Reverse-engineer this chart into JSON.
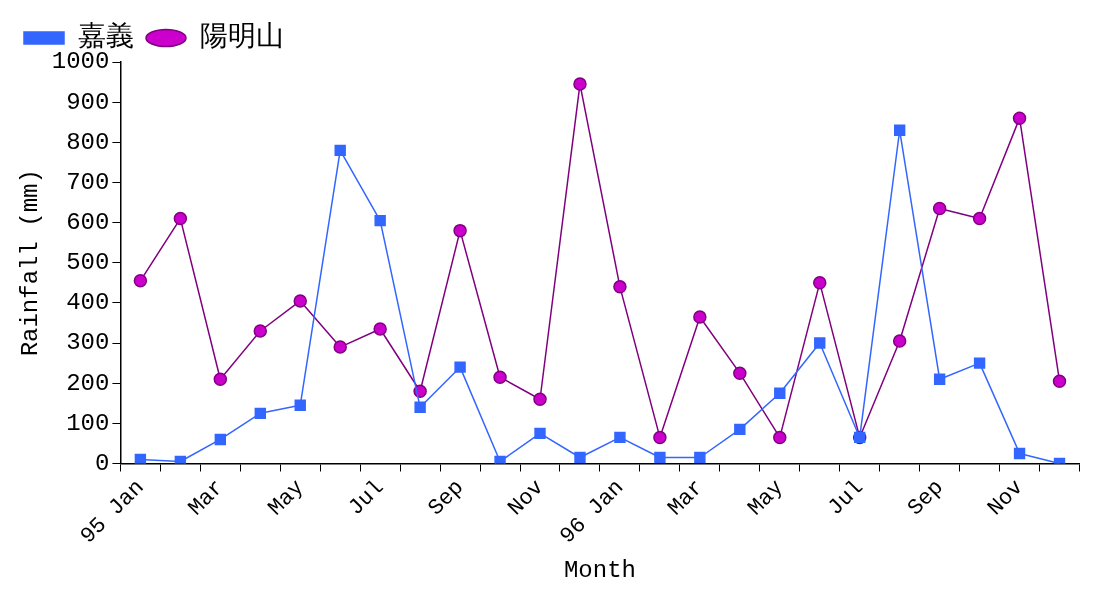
{
  "chart_data": {
    "type": "line",
    "xlabel": "Month",
    "ylabel": "Rainfall (mm)",
    "categories": [
      "95 Jan",
      null,
      "Mar",
      null,
      "May",
      null,
      "Jul",
      null,
      "Sep",
      null,
      "Nov",
      null,
      "96 Jan",
      null,
      "Mar",
      null,
      "May",
      null,
      "Jul",
      null,
      "Sep",
      null,
      "Nov",
      null
    ],
    "series": [
      {
        "name": "陽明山",
        "color": "#800080",
        "marker": "circle",
        "values": [
          455,
          610,
          210,
          330,
          405,
          290,
          335,
          180,
          580,
          215,
          160,
          945,
          440,
          65,
          365,
          225,
          65,
          450,
          65,
          305,
          635,
          610,
          860,
          205
        ]
      },
      {
        "name": "嘉義",
        "color": "#3366ff",
        "marker": "square",
        "values": [
          10,
          5,
          60,
          125,
          145,
          780,
          605,
          140,
          240,
          5,
          75,
          15,
          65,
          15,
          15,
          85,
          175,
          300,
          65,
          830,
          210,
          250,
          25,
          0
        ]
      }
    ],
    "ylim": [
      0,
      1000
    ],
    "yticks": [
      0,
      100,
      200,
      300,
      400,
      500,
      600,
      700,
      800,
      900,
      1000
    ],
    "grid": false,
    "legend": "top left",
    "line_style": "solid"
  }
}
